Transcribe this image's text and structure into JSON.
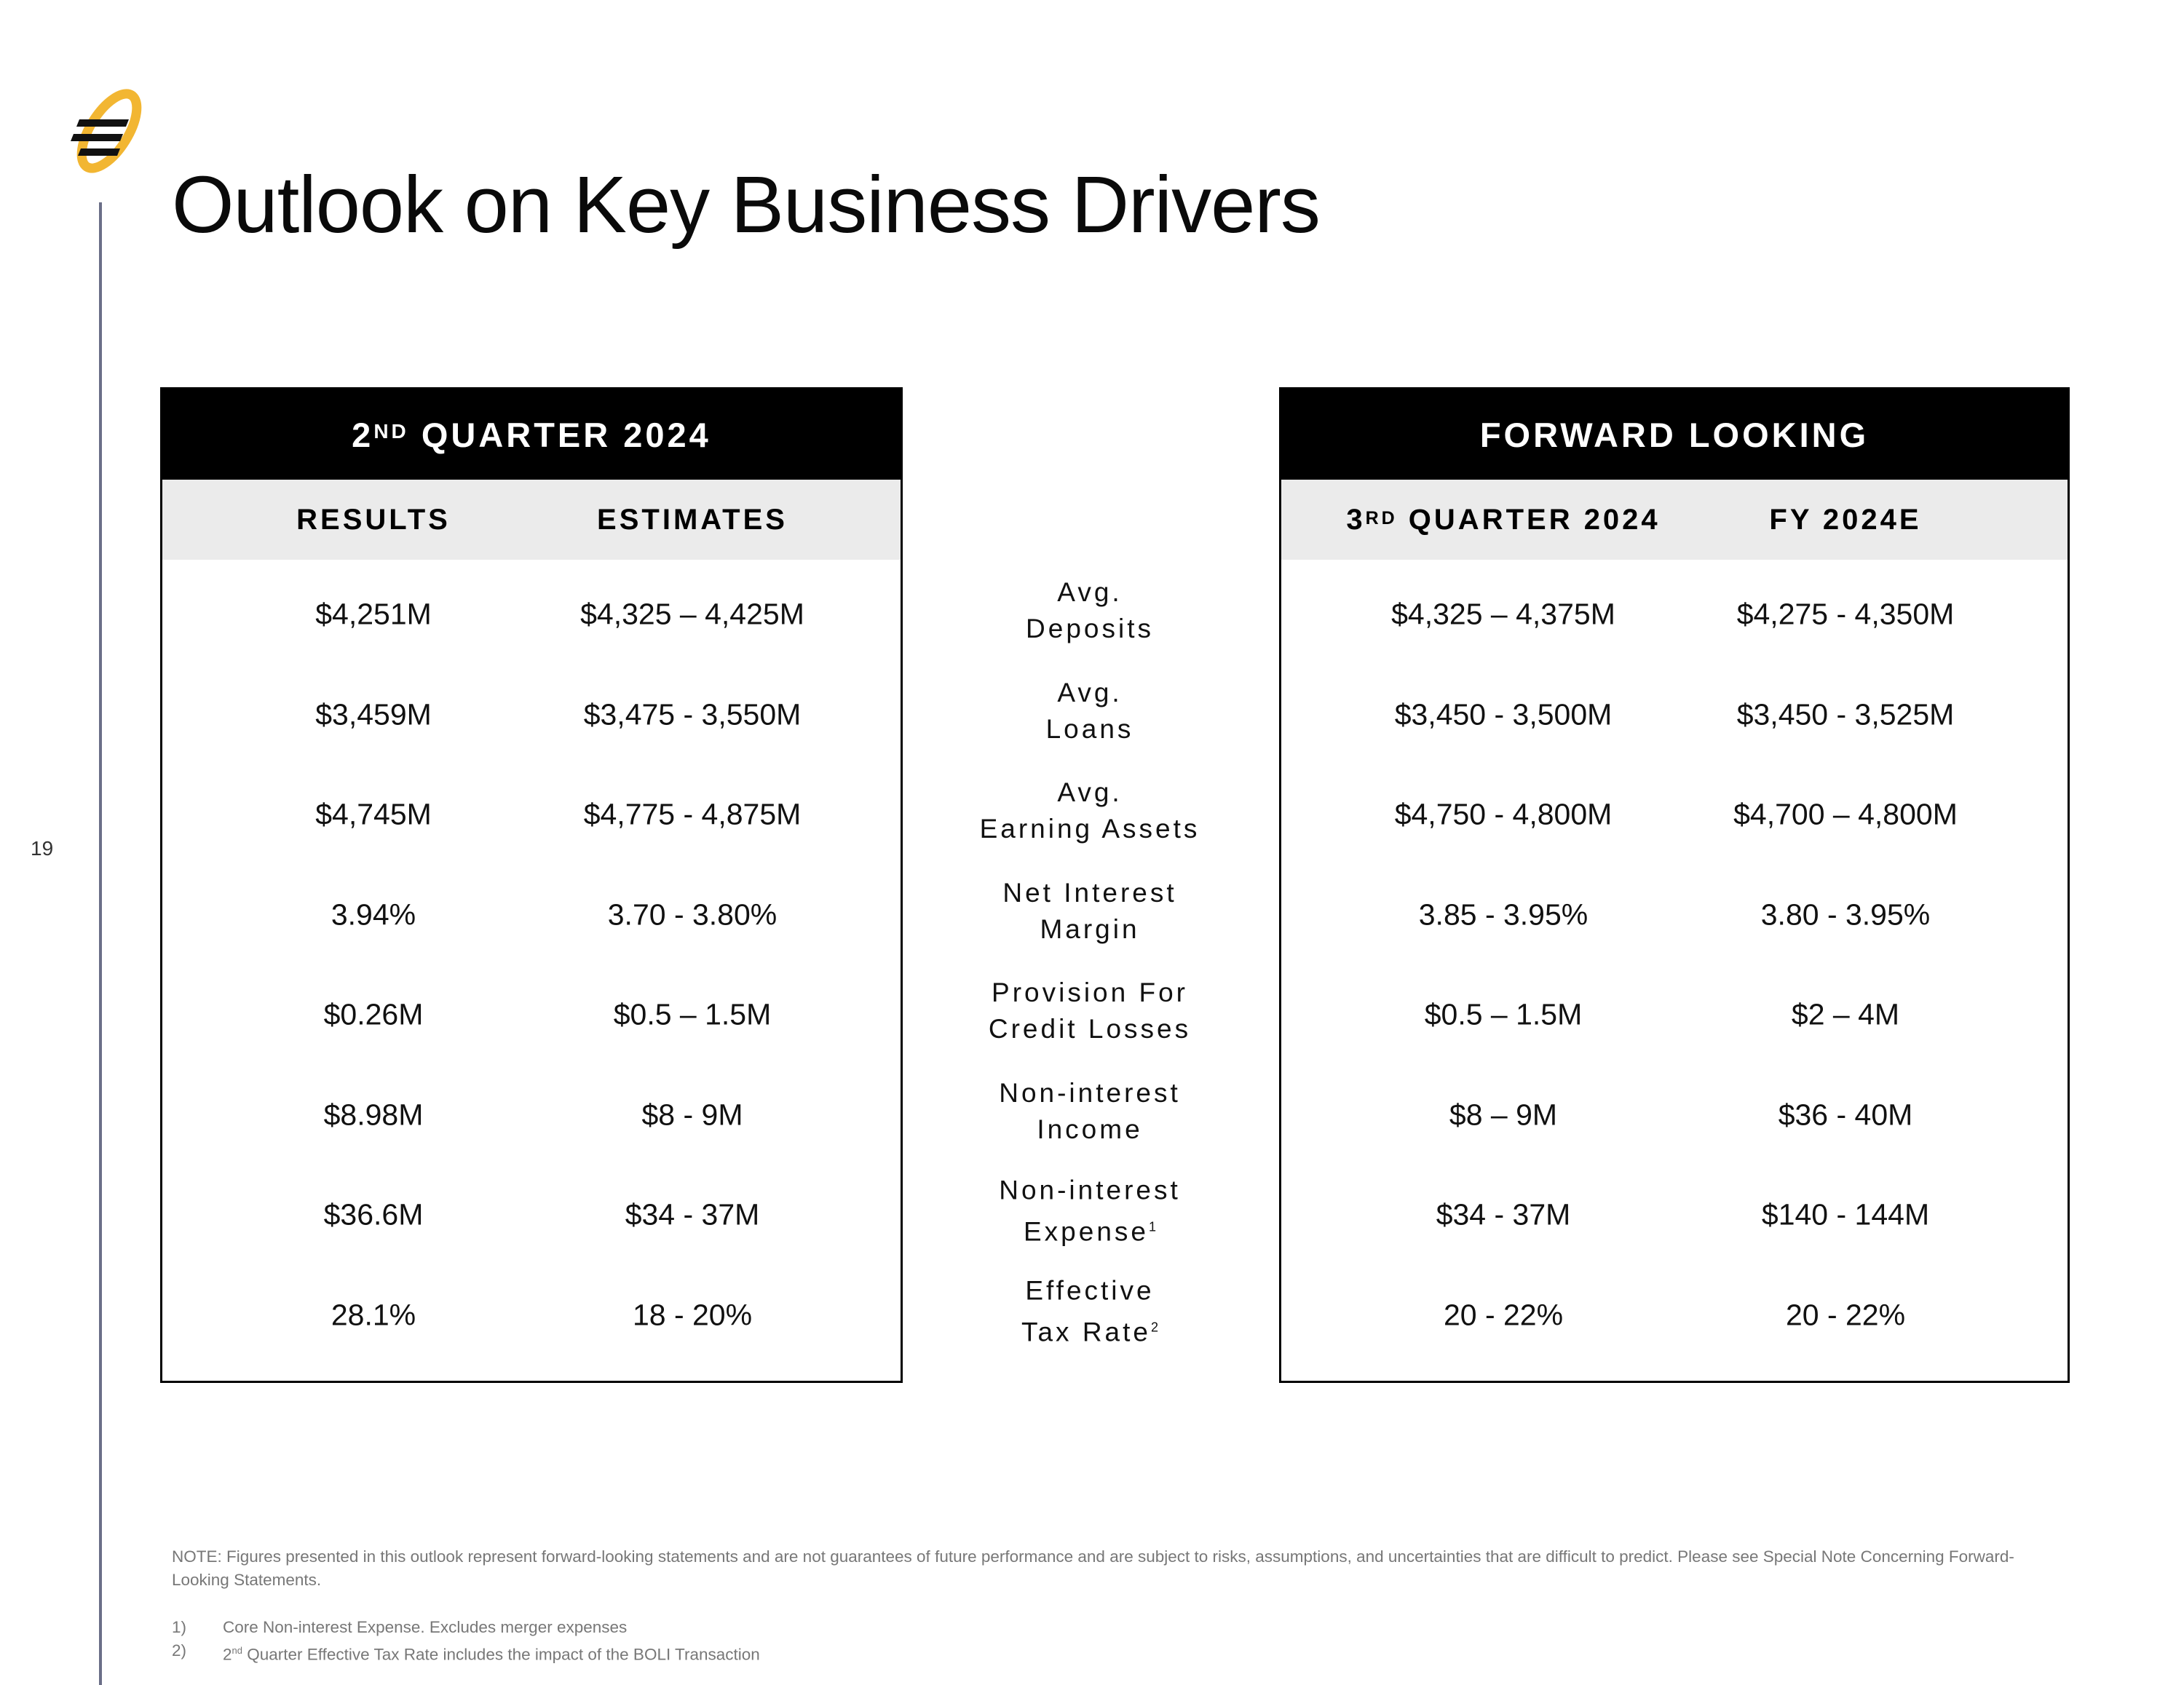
{
  "page": {
    "title": "Outlook on Key Business Drivers",
    "page_number": "19"
  },
  "left_panel": {
    "header": {
      "ordinal_num": "2",
      "ordinal_sup": "ND",
      "rest": " QUARTER 2024"
    },
    "columns": [
      "RESULTS",
      "ESTIMATES"
    ]
  },
  "right_panel": {
    "header": "FORWARD LOOKING",
    "col1": {
      "ordinal_num": "3",
      "ordinal_sup": "RD",
      "rest": " QUARTER 2024"
    },
    "col2": "FY 2024E"
  },
  "rows": [
    {
      "label_line1": "Avg.",
      "label_line2": "Deposits",
      "results": "$4,251M",
      "estimates": "$4,325 – 4,425M",
      "q3_2024": "$4,325 – 4,375M",
      "fy_2024e": "$4,275 - 4,350M"
    },
    {
      "label_line1": "Avg.",
      "label_line2": "Loans",
      "results": "$3,459M",
      "estimates": "$3,475 - 3,550M",
      "q3_2024": "$3,450 - 3,500M",
      "fy_2024e": "$3,450 - 3,525M"
    },
    {
      "label_line1": "Avg.",
      "label_line2": "Earning Assets",
      "results": "$4,745M",
      "estimates": "$4,775 - 4,875M",
      "q3_2024": "$4,750 - 4,800M",
      "fy_2024e": "$4,700 – 4,800M"
    },
    {
      "label_line1": "Net Interest",
      "label_line2": "Margin",
      "results": "3.94%",
      "estimates": "3.70 - 3.80%",
      "q3_2024": "3.85 - 3.95%",
      "fy_2024e": "3.80 - 3.95%"
    },
    {
      "label_line1": "Provision For",
      "label_line2": "Credit Losses",
      "results": "$0.26M",
      "estimates": "$0.5 – 1.5M",
      "q3_2024": "$0.5 – 1.5M",
      "fy_2024e": "$2 – 4M"
    },
    {
      "label_line1": "Non-interest",
      "label_line2": "Income",
      "results": "$8.98M",
      "estimates": "$8 - 9M",
      "q3_2024": "$8 – 9M",
      "fy_2024e": "$36 - 40M"
    },
    {
      "label_line1": "Non-interest",
      "label_line2": "Expense",
      "label_sup": "1",
      "results": "$36.6M",
      "estimates": "$34 - 37M",
      "q3_2024": "$34 - 37M",
      "fy_2024e": "$140 - 144M"
    },
    {
      "label_line1": "Effective",
      "label_line2": "Tax Rate",
      "label_sup": "2",
      "results": "28.1%",
      "estimates": "18 - 20%",
      "q3_2024": "20 - 22%",
      "fy_2024e": "20 - 22%"
    }
  ],
  "note": "NOTE: Figures presented in this outlook represent forward-looking statements and are not guarantees of future performance and are subject to risks, assumptions, and uncertainties that are difficult to predict.  Please see Special Note Concerning Forward-Looking Statements.",
  "footnotes": [
    {
      "num": "1)",
      "text": "Core Non-interest Expense. Excludes merger expenses"
    },
    {
      "num": "2)",
      "text_pre": "2",
      "text_sup": "nd",
      "text_post": " Quarter Effective Tax Rate includes the impact of the BOLI Transaction"
    }
  ],
  "colors": {
    "logo_gold": "#f2b632",
    "logo_dark": "#111111",
    "header_bg": "#000000",
    "subheader_bg": "#ebebeb",
    "accent_line": "#6b6f88",
    "note_text": "#777777"
  }
}
